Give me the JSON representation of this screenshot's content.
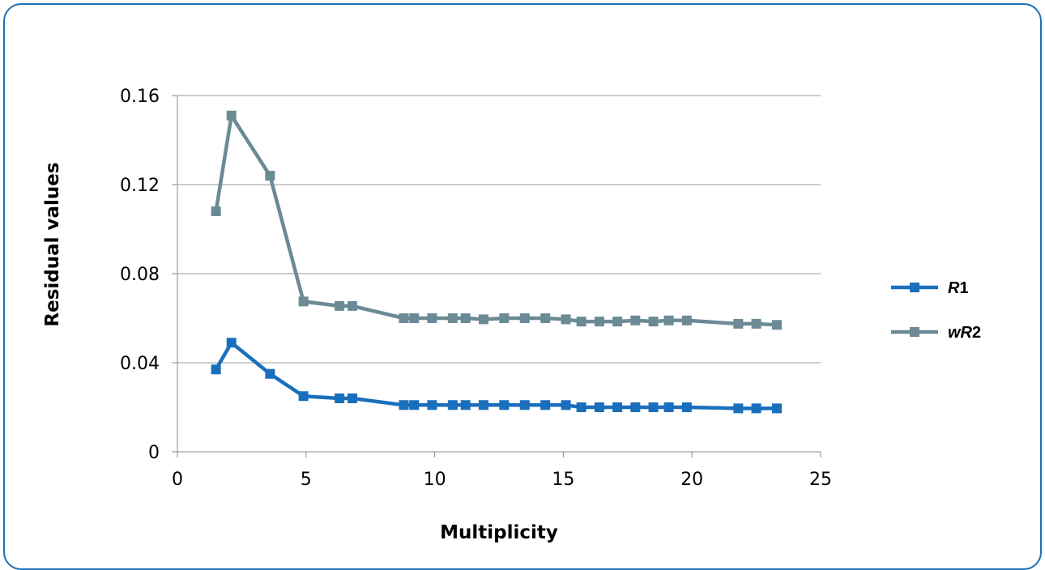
{
  "chart_data": {
    "type": "line",
    "xlabel": "Multiplicity",
    "ylabel": "Residual values",
    "xlim": [
      0,
      25
    ],
    "ylim": [
      0,
      0.16
    ],
    "xticks": [
      "0",
      "5",
      "10",
      "15",
      "20",
      "25"
    ],
    "yticks": [
      "0",
      "0.04",
      "0.08",
      "0.12",
      "0.16"
    ],
    "grid": "horizontal",
    "legend_position": "right",
    "series": [
      {
        "name": "R1",
        "color": "#1a6fbd",
        "points": [
          [
            1.5,
            0.037
          ],
          [
            2.1,
            0.049
          ],
          [
            3.6,
            0.035
          ],
          [
            4.9,
            0.025
          ],
          [
            6.3,
            0.024
          ],
          [
            6.8,
            0.024
          ],
          [
            8.8,
            0.021
          ],
          [
            9.2,
            0.021
          ],
          [
            9.9,
            0.021
          ],
          [
            10.7,
            0.021
          ],
          [
            11.2,
            0.021
          ],
          [
            11.9,
            0.021
          ],
          [
            12.7,
            0.021
          ],
          [
            13.5,
            0.021
          ],
          [
            14.3,
            0.021
          ],
          [
            15.1,
            0.021
          ],
          [
            15.7,
            0.02
          ],
          [
            16.4,
            0.02
          ],
          [
            17.1,
            0.02
          ],
          [
            17.8,
            0.02
          ],
          [
            18.5,
            0.02
          ],
          [
            19.1,
            0.02
          ],
          [
            19.8,
            0.02
          ],
          [
            21.8,
            0.0195
          ],
          [
            22.5,
            0.0195
          ],
          [
            23.3,
            0.0195
          ]
        ]
      },
      {
        "name": "wR2",
        "color": "#6b8a96",
        "points": [
          [
            1.5,
            0.108
          ],
          [
            2.1,
            0.151
          ],
          [
            3.6,
            0.124
          ],
          [
            4.9,
            0.0675
          ],
          [
            6.3,
            0.0655
          ],
          [
            6.8,
            0.0655
          ],
          [
            8.8,
            0.06
          ],
          [
            9.2,
            0.06
          ],
          [
            9.9,
            0.06
          ],
          [
            10.7,
            0.06
          ],
          [
            11.2,
            0.06
          ],
          [
            11.9,
            0.0595
          ],
          [
            12.7,
            0.06
          ],
          [
            13.5,
            0.06
          ],
          [
            14.3,
            0.06
          ],
          [
            15.1,
            0.0595
          ],
          [
            15.7,
            0.0585
          ],
          [
            16.4,
            0.0585
          ],
          [
            17.1,
            0.0585
          ],
          [
            17.8,
            0.059
          ],
          [
            18.5,
            0.0585
          ],
          [
            19.1,
            0.059
          ],
          [
            19.8,
            0.059
          ],
          [
            21.8,
            0.0575
          ],
          [
            22.5,
            0.0575
          ],
          [
            23.3,
            0.057
          ]
        ]
      }
    ],
    "legend": {
      "entries": [
        {
          "italic": "R",
          "plain": "1"
        },
        {
          "italic": "wR",
          "plain": "2"
        }
      ]
    }
  }
}
